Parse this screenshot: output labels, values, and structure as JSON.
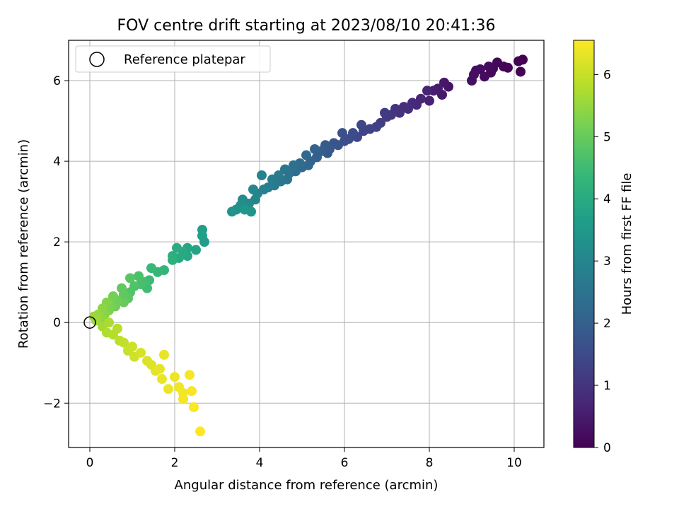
{
  "chart_data": {
    "type": "scatter",
    "title": "FOV centre drift starting at 2023/08/10 20:41:36",
    "xlabel": "Angular distance from reference (arcmin)",
    "ylabel": "Rotation from reference (arcmin)",
    "xlim": [
      -0.5,
      10.7
    ],
    "ylim": [
      -3.1,
      7.0
    ],
    "xticks": [
      0,
      2,
      4,
      6,
      8,
      10
    ],
    "yticks": [
      -2,
      0,
      2,
      4,
      6
    ],
    "xtick_labels": [
      "0",
      "2",
      "4",
      "6",
      "8",
      "10"
    ],
    "ytick_labels": [
      "−2",
      "0",
      "2",
      "4",
      "6"
    ],
    "grid": true,
    "legend": {
      "placement": "top-left",
      "entries": [
        {
          "label": "Reference platepar",
          "marker": "open-circle"
        }
      ]
    },
    "reference_point": {
      "x": 0,
      "y": 0
    },
    "colorbar": {
      "label": "Hours from first FF file",
      "range": [
        0,
        6.55
      ],
      "ticks": [
        0,
        1,
        2,
        3,
        4,
        5,
        6
      ],
      "tick_labels": [
        "0",
        "1",
        "2",
        "3",
        "4",
        "5",
        "6"
      ],
      "colormap": "viridis"
    },
    "colormap_stops": [
      "#440154",
      "#482878",
      "#3e4989",
      "#31688e",
      "#26828e",
      "#1f9e89",
      "#35b779",
      "#6ece58",
      "#b5de2b",
      "#fde725"
    ],
    "points": [
      [
        10.2,
        6.52,
        0.0
      ],
      [
        10.1,
        6.48,
        0.03
      ],
      [
        10.15,
        6.22,
        0.05
      ],
      [
        9.85,
        6.32,
        0.08
      ],
      [
        9.75,
        6.35,
        0.1
      ],
      [
        9.6,
        6.45,
        0.12
      ],
      [
        9.5,
        6.3,
        0.15
      ],
      [
        9.45,
        6.2,
        0.17
      ],
      [
        9.4,
        6.35,
        0.19
      ],
      [
        9.3,
        6.1,
        0.21
      ],
      [
        9.2,
        6.28,
        0.23
      ],
      [
        9.1,
        6.25,
        0.25
      ],
      [
        9.0,
        6.0,
        0.27
      ],
      [
        9.05,
        6.15,
        0.28
      ],
      [
        8.45,
        5.85,
        0.35
      ],
      [
        8.35,
        5.95,
        0.4
      ],
      [
        8.3,
        5.65,
        0.45
      ],
      [
        8.2,
        5.8,
        0.5
      ],
      [
        8.1,
        5.75,
        0.55
      ],
      [
        8.0,
        5.5,
        0.6
      ],
      [
        7.95,
        5.75,
        0.65
      ],
      [
        7.8,
        5.55,
        0.7
      ],
      [
        7.7,
        5.4,
        0.75
      ],
      [
        7.6,
        5.45,
        0.8
      ],
      [
        7.5,
        5.3,
        0.85
      ],
      [
        7.4,
        5.35,
        0.9
      ],
      [
        7.3,
        5.2,
        0.95
      ],
      [
        7.2,
        5.3,
        1.0
      ],
      [
        7.1,
        5.15,
        1.05
      ],
      [
        7.0,
        5.1,
        1.1
      ],
      [
        6.95,
        5.2,
        1.15
      ],
      [
        6.85,
        4.95,
        1.2
      ],
      [
        6.75,
        4.85,
        1.25
      ],
      [
        6.6,
        4.8,
        1.3
      ],
      [
        6.45,
        4.75,
        1.35
      ],
      [
        6.4,
        4.9,
        1.4
      ],
      [
        6.3,
        4.6,
        1.45
      ],
      [
        6.2,
        4.7,
        1.5
      ],
      [
        6.1,
        4.55,
        1.55
      ],
      [
        6.0,
        4.5,
        1.6
      ],
      [
        5.95,
        4.7,
        1.65
      ],
      [
        5.85,
        4.4,
        1.7
      ],
      [
        5.75,
        4.45,
        1.75
      ],
      [
        5.65,
        4.3,
        1.8
      ],
      [
        5.6,
        4.2,
        1.85
      ],
      [
        5.55,
        4.4,
        1.9
      ],
      [
        5.45,
        4.25,
        1.95
      ],
      [
        5.35,
        4.1,
        2.0
      ],
      [
        5.3,
        4.3,
        2.05
      ],
      [
        5.2,
        4.0,
        2.1
      ],
      [
        5.15,
        3.9,
        2.15
      ],
      [
        5.1,
        4.15,
        2.2
      ],
      [
        5.0,
        3.85,
        2.25
      ],
      [
        4.95,
        3.95,
        2.3
      ],
      [
        4.85,
        3.75,
        2.35
      ],
      [
        4.8,
        3.9,
        2.4
      ],
      [
        4.7,
        3.7,
        2.45
      ],
      [
        4.65,
        3.55,
        2.5
      ],
      [
        4.6,
        3.8,
        2.55
      ],
      [
        4.5,
        3.5,
        2.6
      ],
      [
        4.45,
        3.65,
        2.65
      ],
      [
        4.35,
        3.4,
        2.7
      ],
      [
        4.3,
        3.55,
        2.75
      ],
      [
        4.2,
        3.35,
        2.8
      ],
      [
        4.1,
        3.3,
        2.85
      ],
      [
        4.05,
        3.65,
        2.9
      ],
      [
        3.95,
        3.2,
        2.95
      ],
      [
        3.9,
        3.05,
        3.0
      ],
      [
        3.85,
        3.3,
        3.05
      ],
      [
        3.75,
        2.95,
        3.1
      ],
      [
        3.7,
        2.85,
        3.15
      ],
      [
        3.6,
        3.05,
        3.2
      ],
      [
        3.55,
        2.9,
        3.25
      ],
      [
        3.45,
        2.8,
        3.3
      ],
      [
        3.35,
        2.75,
        3.35
      ],
      [
        3.8,
        2.75,
        3.4
      ],
      [
        3.65,
        2.8,
        3.45
      ],
      [
        2.7,
        2.0,
        3.6
      ],
      [
        2.65,
        2.3,
        3.65
      ],
      [
        2.65,
        2.15,
        3.7
      ],
      [
        2.5,
        1.8,
        3.8
      ],
      [
        2.3,
        1.85,
        3.85
      ],
      [
        2.3,
        1.65,
        3.9
      ],
      [
        2.2,
        1.75,
        3.95
      ],
      [
        2.1,
        1.6,
        4.0
      ],
      [
        2.05,
        1.85,
        4.05
      ],
      [
        1.95,
        1.65,
        4.1
      ],
      [
        1.95,
        1.55,
        4.15
      ],
      [
        1.75,
        1.3,
        4.3
      ],
      [
        1.6,
        1.25,
        4.35
      ],
      [
        1.45,
        1.35,
        4.4
      ],
      [
        1.4,
        1.05,
        4.45
      ],
      [
        1.35,
        0.85,
        4.5
      ],
      [
        1.3,
        1.0,
        4.55
      ],
      [
        1.2,
        0.95,
        4.6
      ],
      [
        1.15,
        1.15,
        4.65
      ],
      [
        1.05,
        0.9,
        4.7
      ],
      [
        0.95,
        0.75,
        4.75
      ],
      [
        0.95,
        1.1,
        4.8
      ],
      [
        0.9,
        0.6,
        4.85
      ],
      [
        0.8,
        0.7,
        4.9
      ],
      [
        0.75,
        0.85,
        4.95
      ],
      [
        0.8,
        0.5,
        5.0
      ],
      [
        0.65,
        0.55,
        5.05
      ],
      [
        0.6,
        0.4,
        5.1
      ],
      [
        0.55,
        0.65,
        5.15
      ],
      [
        0.5,
        0.45,
        5.2
      ],
      [
        0.45,
        0.3,
        5.25
      ],
      [
        0.4,
        0.5,
        5.3
      ],
      [
        0.35,
        0.2,
        5.35
      ],
      [
        0.3,
        0.35,
        5.4
      ],
      [
        0.25,
        0.1,
        5.45
      ],
      [
        0.2,
        0.2,
        5.5
      ],
      [
        0.1,
        0.15,
        5.55
      ],
      [
        0.15,
        0.05,
        5.6
      ],
      [
        0.3,
        -0.1,
        5.65
      ],
      [
        0.45,
        0.0,
        5.7
      ],
      [
        0.4,
        -0.25,
        5.75
      ],
      [
        0.55,
        -0.3,
        5.8
      ],
      [
        0.65,
        -0.15,
        5.85
      ],
      [
        0.7,
        -0.45,
        5.9
      ],
      [
        0.8,
        -0.5,
        5.95
      ],
      [
        0.9,
        -0.7,
        6.0
      ],
      [
        1.0,
        -0.6,
        6.05
      ],
      [
        1.05,
        -0.85,
        6.1
      ],
      [
        1.2,
        -0.75,
        6.15
      ],
      [
        1.35,
        -0.95,
        6.2
      ],
      [
        1.45,
        -1.05,
        6.25
      ],
      [
        1.55,
        -1.2,
        6.3
      ],
      [
        1.65,
        -1.15,
        6.32
      ],
      [
        1.75,
        -0.8,
        6.34
      ],
      [
        1.7,
        -1.4,
        6.36
      ],
      [
        1.85,
        -1.65,
        6.38
      ],
      [
        2.0,
        -1.35,
        6.4
      ],
      [
        2.1,
        -1.6,
        6.42
      ],
      [
        2.2,
        -1.75,
        6.44
      ],
      [
        2.2,
        -1.9,
        6.46
      ],
      [
        2.35,
        -1.3,
        6.48
      ],
      [
        2.4,
        -1.7,
        6.5
      ],
      [
        2.45,
        -2.1,
        6.52
      ],
      [
        2.6,
        -2.7,
        6.55
      ]
    ]
  }
}
